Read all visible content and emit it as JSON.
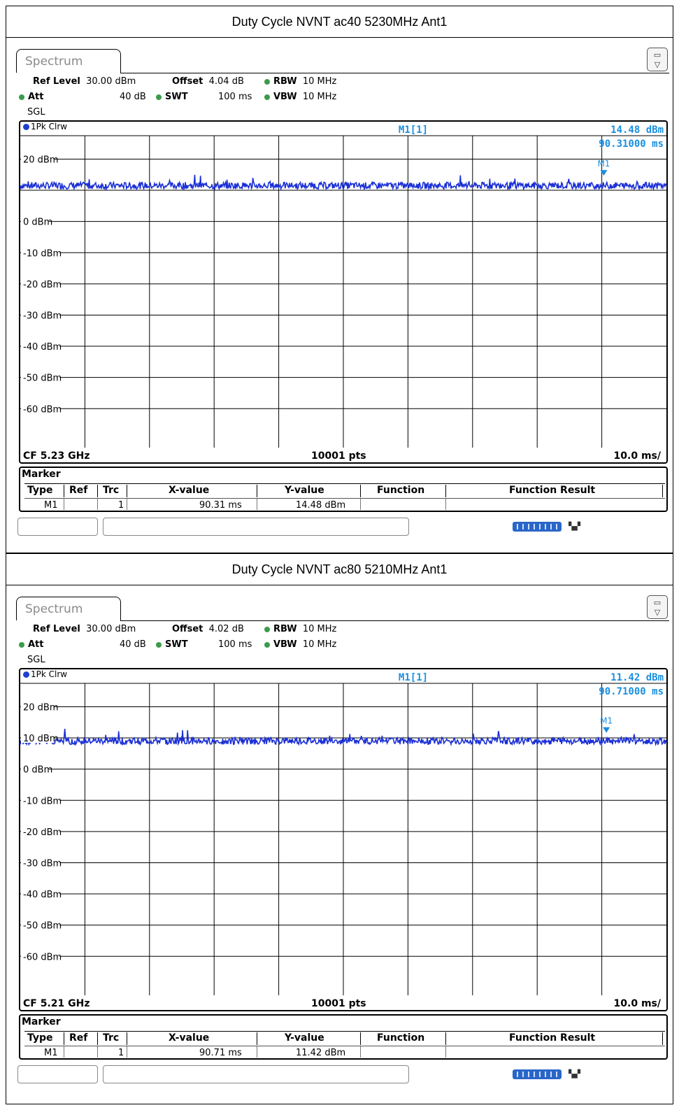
{
  "panels": [
    {
      "heading": "Duty Cycle NVNT ac40 5230MHz Ant1",
      "tab_label": "Spectrum",
      "ref_level_label": "Ref Level",
      "ref_level_value": "30.00 dBm",
      "offset_label": "Offset",
      "offset_value": "4.04 dB",
      "rbw_label": "RBW",
      "rbw_value": "10 MHz",
      "att_label": "Att",
      "att_value": "40 dB",
      "swt_label": "SWT",
      "swt_value": "100 ms",
      "vbw_label": "VBW",
      "vbw_value": "10 MHz",
      "sgl": "SGL",
      "trace_label": "1Pk Clrw",
      "marker_readout_name": "M1[1]",
      "marker_readout_level": "14.48 dBm",
      "marker_readout_time": "90.31000 ms",
      "marker_flag": "M1",
      "footer_cf": "CF 5.23 GHz",
      "footer_pts": "10001 pts",
      "footer_div": "10.0 ms/",
      "marker_table_title": "Marker",
      "marker_table_headers": [
        "Type",
        "Ref",
        "Trc",
        "X-value",
        "Y-value",
        "Function",
        "Function Result"
      ],
      "marker_row": {
        "type": "M1",
        "ref": "",
        "trc": "1",
        "x": "90.31 ms",
        "y": "14.48 dBm",
        "function": "",
        "result": ""
      }
    },
    {
      "heading": "Duty Cycle NVNT ac80 5210MHz Ant1",
      "tab_label": "Spectrum",
      "ref_level_label": "Ref Level",
      "ref_level_value": "30.00 dBm",
      "offset_label": "Offset",
      "offset_value": "4.02 dB",
      "rbw_label": "RBW",
      "rbw_value": "10 MHz",
      "att_label": "Att",
      "att_value": "40 dB",
      "swt_label": "SWT",
      "swt_value": "100 ms",
      "vbw_label": "VBW",
      "vbw_value": "10 MHz",
      "sgl": "SGL",
      "trace_label": "1Pk Clrw",
      "marker_readout_name": "M1[1]",
      "marker_readout_level": "11.42 dBm",
      "marker_readout_time": "90.71000 ms",
      "marker_flag": "M1",
      "footer_cf": "CF 5.21 GHz",
      "footer_pts": "10001 pts",
      "footer_div": "10.0 ms/",
      "marker_table_title": "Marker",
      "marker_table_headers": [
        "Type",
        "Ref",
        "Trc",
        "X-value",
        "Y-value",
        "Function",
        "Function Result"
      ],
      "marker_row": {
        "type": "M1",
        "ref": "",
        "trc": "1",
        "x": "90.71 ms",
        "y": "11.42 dBm",
        "function": "",
        "result": ""
      }
    }
  ],
  "chart_data": [
    {
      "type": "line",
      "ylim": [
        -70,
        30
      ],
      "xlim": [
        0,
        100
      ],
      "x_unit": "ms",
      "y_unit": "dBm",
      "y_tick_labels": [
        "20 dBm",
        "0 dBm",
        "-10 dBm",
        "-20 dBm",
        "-30 dBm",
        "-40 dBm",
        "-50 dBm",
        "-60 dBm"
      ],
      "y_ticks": [
        20,
        0,
        -10,
        -20,
        -30,
        -40,
        -50,
        -60
      ],
      "series": [
        {
          "mean_level_dbm": 11.5,
          "color": "#1a2fd6"
        }
      ],
      "marker": {
        "x": 90.31,
        "y": 14.48
      },
      "grid": true
    },
    {
      "type": "line",
      "ylim": [
        -70,
        30
      ],
      "xlim": [
        0,
        100
      ],
      "x_unit": "ms",
      "y_unit": "dBm",
      "y_tick_labels": [
        "20 dBm",
        "10 dBm",
        "0 dBm",
        "-10 dBm",
        "-20 dBm",
        "-30 dBm",
        "-40 dBm",
        "-50 dBm",
        "-60 dBm"
      ],
      "y_ticks": [
        20,
        10,
        0,
        -10,
        -20,
        -30,
        -40,
        -50,
        -60
      ],
      "series": [
        {
          "mean_level_dbm": 9.0,
          "color": "#1a2fd6"
        }
      ],
      "marker": {
        "x": 90.71,
        "y": 11.42
      },
      "grid": true
    }
  ],
  "colors": {
    "marker_text": "#1a8fe0",
    "trace": "#1a2fd6",
    "status_green": "#3b9b4a"
  }
}
